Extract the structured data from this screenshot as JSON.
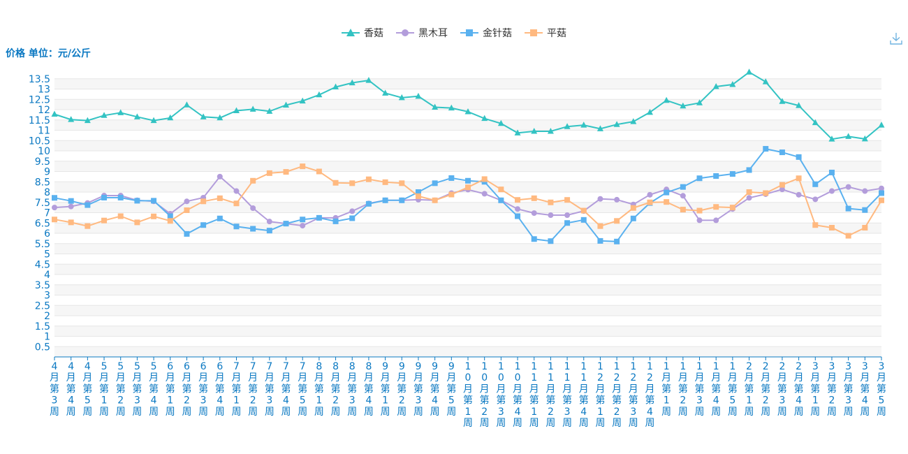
{
  "chart_data": {
    "type": "line",
    "title": "",
    "ylabel": "价格 单位：元/公斤",
    "xlabel": "",
    "ylim": [
      0,
      14
    ],
    "yticks": [
      0.5,
      1,
      1.5,
      2,
      2.5,
      3,
      3.5,
      4,
      4.5,
      5,
      5.5,
      6,
      6.5,
      7,
      7.5,
      8,
      8.5,
      9,
      9.5,
      10,
      10.5,
      11,
      11.5,
      12,
      12.5,
      13,
      13.5
    ],
    "grid": true,
    "legend_position": "top-center",
    "categories": [
      "4月第3周",
      "4月第4周",
      "4月第5周",
      "5月第1周",
      "5月第2周",
      "5月第3周",
      "5月第4周",
      "6月第1周",
      "6月第2周",
      "6月第3周",
      "6月第4周",
      "7月第1周",
      "7月第2周",
      "7月第3周",
      "7月第4周",
      "7月第5周",
      "8月第1周",
      "8月第2周",
      "8月第3周",
      "8月第4周",
      "9月第1周",
      "9月第2周",
      "9月第3周",
      "9月第4周",
      "9月第5周",
      "10月第1周",
      "10月第2周",
      "10月第3周",
      "10月第4周",
      "11月第1周",
      "11月第2周",
      "11月第3周",
      "11月第4周",
      "12月第1周",
      "12月第2周",
      "12月第3周",
      "12月第4周",
      "1月第1周",
      "1月第2周",
      "1月第3周",
      "1月第4周",
      "1月第5周",
      "2月第1周",
      "2月第2周",
      "2月第3周",
      "2月第4周",
      "3月第1周",
      "3月第2周",
      "3月第3周",
      "3月第4周",
      "3月第5周"
    ],
    "series": [
      {
        "name": "香菇",
        "color": "#33c3c3",
        "symbol": "triangle",
        "values": [
          11.78,
          11.52,
          11.47,
          11.72,
          11.85,
          11.65,
          11.47,
          11.6,
          12.23,
          11.65,
          11.6,
          11.95,
          12.02,
          11.92,
          12.22,
          12.42,
          12.72,
          13.1,
          13.3,
          13.42,
          12.8,
          12.58,
          12.65,
          12.12,
          12.08,
          11.9,
          11.57,
          11.33,
          10.87,
          10.95,
          10.95,
          11.18,
          11.25,
          11.07,
          11.28,
          11.42,
          11.87,
          12.45,
          12.18,
          12.33,
          13.12,
          13.22,
          13.82,
          13.35,
          12.4,
          12.2,
          11.37,
          10.57,
          10.7,
          10.58,
          11.25
        ]
      },
      {
        "name": "黑木耳",
        "color": "#b39ddb",
        "symbol": "circle",
        "values": [
          7.25,
          7.3,
          7.47,
          7.83,
          7.83,
          7.6,
          7.55,
          6.95,
          7.55,
          7.73,
          8.75,
          8.05,
          7.22,
          6.57,
          6.47,
          6.37,
          6.75,
          6.75,
          7.07,
          7.45,
          7.6,
          7.6,
          7.63,
          7.6,
          7.95,
          8.12,
          7.92,
          7.6,
          7.18,
          6.98,
          6.88,
          6.88,
          7.08,
          7.67,
          7.63,
          7.4,
          7.87,
          8.13,
          7.82,
          6.63,
          6.63,
          7.18,
          7.72,
          7.9,
          8.13,
          7.87,
          7.65,
          8.05,
          8.25,
          8.05,
          8.18
        ]
      },
      {
        "name": "金针菇",
        "color": "#5ab1ef",
        "symbol": "rect",
        "values": [
          7.72,
          7.57,
          7.37,
          7.73,
          7.73,
          7.58,
          7.58,
          6.83,
          5.97,
          6.4,
          6.72,
          6.33,
          6.22,
          6.13,
          6.47,
          6.67,
          6.75,
          6.58,
          6.73,
          7.43,
          7.6,
          7.6,
          8.0,
          8.43,
          8.68,
          8.55,
          8.5,
          7.6,
          6.83,
          5.72,
          5.62,
          6.5,
          6.65,
          5.63,
          5.6,
          6.72,
          7.47,
          7.98,
          8.25,
          8.67,
          8.78,
          8.88,
          9.07,
          10.1,
          9.93,
          9.7,
          8.38,
          8.95,
          7.2,
          7.13,
          7.95
        ]
      },
      {
        "name": "平菇",
        "color": "#ffb980",
        "symbol": "rect",
        "values": [
          6.67,
          6.53,
          6.35,
          6.62,
          6.83,
          6.53,
          6.82,
          6.6,
          7.12,
          7.55,
          7.7,
          7.45,
          8.55,
          8.92,
          8.98,
          9.25,
          9.0,
          8.45,
          8.43,
          8.62,
          8.48,
          8.43,
          7.8,
          7.6,
          7.88,
          8.23,
          8.63,
          8.13,
          7.62,
          7.7,
          7.5,
          7.62,
          7.1,
          6.35,
          6.6,
          7.23,
          7.5,
          7.52,
          7.15,
          7.1,
          7.28,
          7.25,
          8.0,
          7.95,
          8.35,
          8.67,
          6.4,
          6.27,
          5.88,
          6.27,
          7.6
        ]
      }
    ]
  }
}
